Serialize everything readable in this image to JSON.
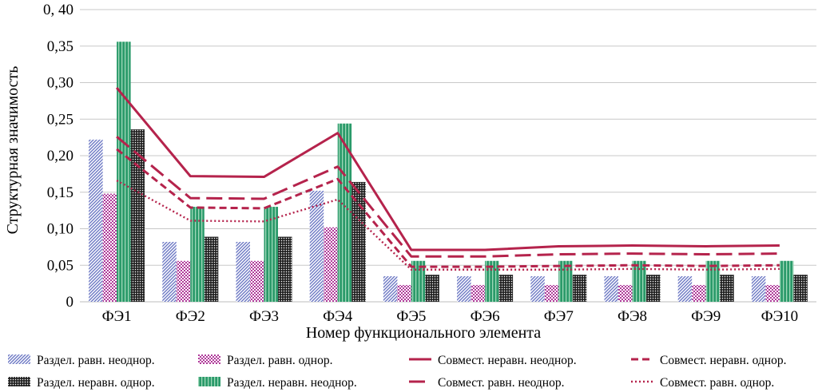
{
  "chart_data": {
    "type": "bar",
    "title": "",
    "xlabel": "Номер функционального элемента",
    "ylabel": "Структурная значимость",
    "ylim": [
      0,
      0.4
    ],
    "yticks": [
      {
        "value": 0,
        "label": "0"
      },
      {
        "value": 0.05,
        "label": "0,05"
      },
      {
        "value": 0.1,
        "label": "0,10"
      },
      {
        "value": 0.15,
        "label": "0,15"
      },
      {
        "value": 0.2,
        "label": "0,20"
      },
      {
        "value": 0.25,
        "label": "0,25"
      },
      {
        "value": 0.3,
        "label": "0,30"
      },
      {
        "value": 0.35,
        "label": "0,35"
      },
      {
        "value": 0.4,
        "label": "0, 40"
      }
    ],
    "grid": true,
    "legend_position": "bottom",
    "categories": [
      "ФЭ1",
      "ФЭ2",
      "ФЭ3",
      "ФЭ4",
      "ФЭ5",
      "ФЭ6",
      "ФЭ7",
      "ФЭ8",
      "ФЭ9",
      "ФЭ10"
    ],
    "bar_series": [
      {
        "name": "Раздел. равн. неоднор.",
        "color": "#6c78c4",
        "pattern": "diagonal-lines",
        "values": [
          0.222,
          0.082,
          0.082,
          0.152,
          0.035,
          0.035,
          0.035,
          0.035,
          0.035,
          0.035
        ]
      },
      {
        "name": "Раздел. равн. однор.",
        "color": "#b03a9a",
        "pattern": "checker",
        "values": [
          0.148,
          0.056,
          0.056,
          0.102,
          0.023,
          0.023,
          0.023,
          0.023,
          0.023,
          0.023
        ]
      },
      {
        "name": "Раздел. неравн. неоднор.",
        "color": "#2a9a6a",
        "pattern": "vertical-stripes",
        "values": [
          0.356,
          0.13,
          0.13,
          0.244,
          0.056,
          0.056,
          0.056,
          0.056,
          0.056,
          0.056
        ]
      },
      {
        "name": "Раздел. неравн. однор.",
        "color": "#222222",
        "pattern": "dots",
        "values": [
          0.236,
          0.089,
          0.089,
          0.164,
          0.037,
          0.037,
          0.037,
          0.037,
          0.037,
          0.037
        ]
      }
    ],
    "line_series": [
      {
        "name": "Совмест. неравн. неоднор.",
        "color": "#b5234c",
        "dash": "solid",
        "values": [
          0.293,
          0.172,
          0.171,
          0.231,
          0.071,
          0.071,
          0.076,
          0.077,
          0.076,
          0.077
        ]
      },
      {
        "name": "Совмест. неравн. однор.",
        "color": "#b5234c",
        "dash": "short-dash",
        "values": [
          0.209,
          0.129,
          0.128,
          0.168,
          0.048,
          0.048,
          0.049,
          0.05,
          0.049,
          0.05
        ]
      },
      {
        "name": "Совмест. равн. неоднор.",
        "color": "#b5234c",
        "dash": "long-dash",
        "values": [
          0.226,
          0.142,
          0.141,
          0.185,
          0.062,
          0.062,
          0.065,
          0.066,
          0.065,
          0.066
        ]
      },
      {
        "name": "Совмест. равн. однор.",
        "color": "#b5234c",
        "dash": "dotted",
        "values": [
          0.166,
          0.111,
          0.11,
          0.14,
          0.044,
          0.044,
          0.044,
          0.045,
          0.044,
          0.045
        ]
      }
    ],
    "legend_order": [
      "Раздел. равн. неоднор.",
      "Раздел. равн. однор.",
      "Совмест. неравн. неоднор.",
      "Совмест. неравн. однор.",
      "Раздел. неравн. однор.",
      "Раздел. неравн. неоднор.",
      "Совмест. равн. неоднор.",
      "Совмест. равн. однор."
    ]
  }
}
